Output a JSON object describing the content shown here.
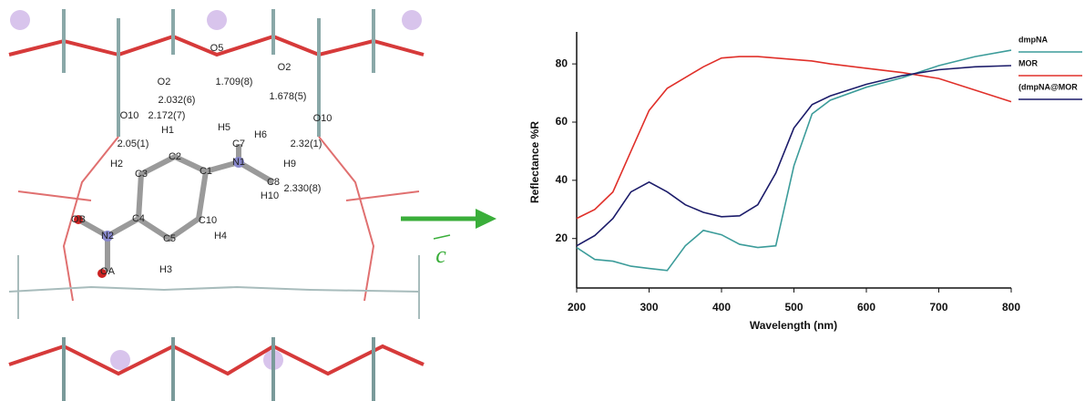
{
  "structure_labels": [
    "O5",
    "O2",
    "O2",
    "1.709(8)",
    "1.678(5)",
    "2.032(6)",
    "H5",
    "H6",
    "O10",
    "2.172(7)",
    "C7",
    "O10",
    "H1",
    "2.05(1)",
    "2.32(1)",
    "N1",
    "H2",
    "C2",
    "C3",
    "C1",
    "H9",
    "C8",
    "H10",
    "2.330(8)",
    "OB",
    "C4",
    "C10",
    "N2",
    "H4",
    "C5",
    "OA",
    "H3"
  ],
  "arrow_label": "c",
  "chart_data": {
    "type": "line",
    "x_label": "Wavelength (nm)",
    "y_label": "Reflectance %R",
    "x": [
      200,
      225,
      250,
      275,
      300,
      325,
      350,
      375,
      400,
      425,
      450,
      475,
      500,
      525,
      550,
      600,
      650,
      700,
      750,
      800
    ],
    "series": [
      {
        "name": "dmpNA",
        "color": "#3c9c9a",
        "values": [
          16.9,
          12.8,
          12.2,
          10.5,
          9.7,
          9,
          17.5,
          22.8,
          21.3,
          18,
          16.9,
          17.5,
          45,
          62.8,
          67.5,
          72,
          75.3,
          79.4,
          82.5,
          84.7
        ]
      },
      {
        "name": "MOR",
        "color": "#e0302a",
        "values": [
          26.9,
          30,
          36,
          50,
          64,
          71.6,
          75.3,
          79,
          82,
          82.5,
          82.5,
          82,
          81.5,
          81,
          80,
          78.5,
          77,
          75,
          71,
          67
        ]
      },
      {
        "name": "(dmpNA@MOR",
        "color": "#1c1c6a",
        "values": [
          17.5,
          21,
          26.9,
          36,
          39.4,
          36,
          31.6,
          29,
          27.5,
          27.8,
          31.6,
          42.5,
          58,
          66,
          69,
          73,
          76,
          78,
          79,
          79.4
        ]
      }
    ],
    "xlim": [
      200,
      800
    ],
    "xticks": [
      200,
      300,
      400,
      500,
      600,
      700,
      800
    ],
    "ylim": [
      3,
      91
    ],
    "yticks": [
      20,
      40,
      60,
      80
    ]
  }
}
